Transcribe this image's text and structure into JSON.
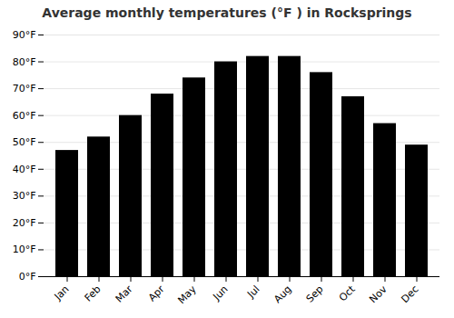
{
  "chart_data": {
    "type": "bar",
    "title": "Average monthly temperatures (°F ) in Rocksprings",
    "categories": [
      "Jan",
      "Feb",
      "Mar",
      "Apr",
      "May",
      "Jun",
      "Jul",
      "Aug",
      "Sep",
      "Oct",
      "Nov",
      "Dec"
    ],
    "values": [
      47,
      52,
      60,
      68,
      74,
      80,
      82,
      82,
      76,
      67,
      57,
      49
    ],
    "ylim": [
      0,
      90
    ],
    "yticks": [
      {
        "value": 0,
        "label": "0°F"
      },
      {
        "value": 10,
        "label": "10°F"
      },
      {
        "value": 20,
        "label": "20°F"
      },
      {
        "value": 30,
        "label": "30°F"
      },
      {
        "value": 40,
        "label": "40°F"
      },
      {
        "value": 50,
        "label": "50°F"
      },
      {
        "value": 60,
        "label": "60°F"
      },
      {
        "value": 70,
        "label": "70°F"
      },
      {
        "value": 80,
        "label": "80°F"
      },
      {
        "value": 90,
        "label": "90°F"
      }
    ],
    "grid": true
  }
}
